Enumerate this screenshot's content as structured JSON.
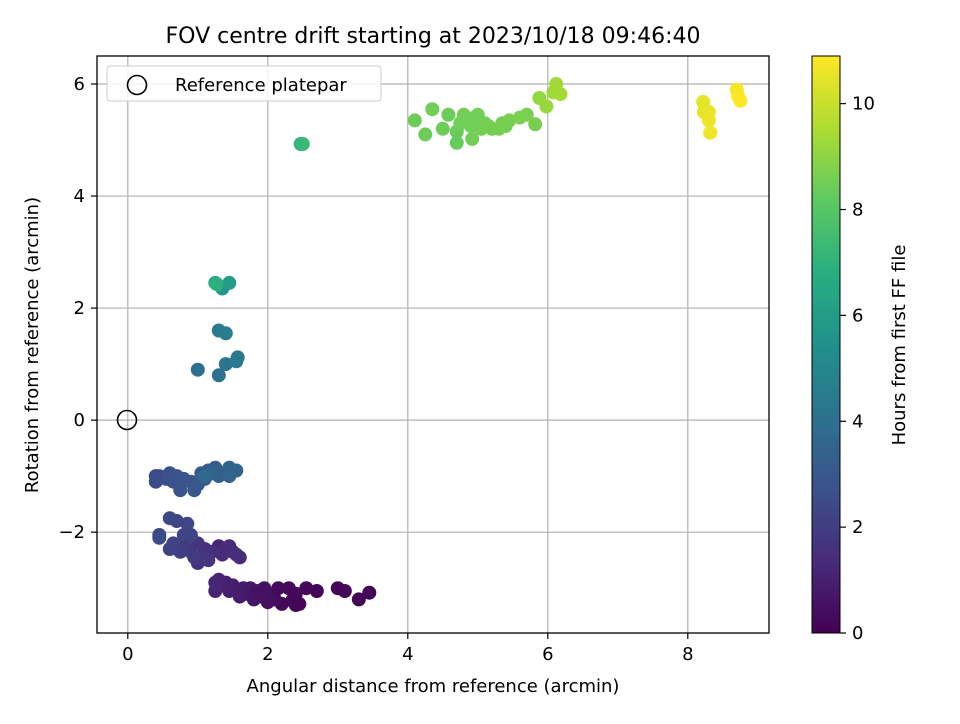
{
  "chart_data": {
    "type": "scatter",
    "title": "FOV centre drift starting at 2023/10/18 09:46:40",
    "xlabel": "Angular distance from reference (arcmin)",
    "ylabel": "Rotation from reference (arcmin)",
    "xlim": [
      -0.44,
      9.16
    ],
    "ylim": [
      -3.8,
      6.5
    ],
    "xticks": [
      0,
      2,
      4,
      6,
      8
    ],
    "yticks": [
      -2,
      0,
      2,
      4,
      6
    ],
    "ytick_labels": [
      "−2",
      "0",
      "2",
      "4",
      "6"
    ],
    "grid": true,
    "legend": {
      "position": "upper-left",
      "entries": [
        "Reference platepar"
      ]
    },
    "reference_point": {
      "x": 0,
      "y": 0,
      "label": "Reference platepar"
    },
    "colorbar": {
      "label": "Hours from first FF file",
      "colormap": "viridis",
      "range": [
        0,
        10.9
      ],
      "ticks": [
        0,
        2,
        4,
        6,
        8,
        10
      ]
    },
    "points": [
      [
        2.7,
        -3.05,
        0.1
      ],
      [
        2.35,
        -3.22,
        0.15
      ],
      [
        2.4,
        -3.3,
        0.2
      ],
      [
        2.2,
        -3.28,
        0.25
      ],
      [
        2.3,
        -3.0,
        0.3
      ],
      [
        2.1,
        -3.2,
        0.35
      ],
      [
        2.0,
        -3.25,
        0.4
      ],
      [
        2.05,
        -3.1,
        0.45
      ],
      [
        1.9,
        -3.15,
        0.5
      ],
      [
        1.95,
        -3.0,
        0.55
      ],
      [
        1.8,
        -3.2,
        0.6
      ],
      [
        1.7,
        -3.1,
        0.65
      ],
      [
        1.75,
        -3.0,
        0.7
      ],
      [
        1.6,
        -3.15,
        0.75
      ],
      [
        1.65,
        -3.0,
        0.8
      ],
      [
        1.55,
        -3.05,
        0.85
      ],
      [
        1.5,
        -2.95,
        0.9
      ],
      [
        1.45,
        -3.05,
        0.95
      ],
      [
        1.4,
        -2.9,
        1.0
      ],
      [
        1.35,
        -2.95,
        1.05
      ],
      [
        1.3,
        -2.85,
        1.1
      ],
      [
        1.25,
        -3.05,
        1.15
      ],
      [
        1.25,
        -2.9,
        1.2
      ],
      [
        2.45,
        -3.28,
        0.1
      ],
      [
        2.15,
        -3.0,
        0.3
      ],
      [
        1.85,
        -3.05,
        0.5
      ],
      [
        3.0,
        -3.0,
        0.1
      ],
      [
        3.1,
        -3.05,
        0.15
      ],
      [
        3.3,
        -3.2,
        0.05
      ],
      [
        3.45,
        -3.08,
        0.1
      ],
      [
        2.55,
        -3.0,
        0.2
      ],
      [
        2.4,
        -3.1,
        0.25
      ],
      [
        1.3,
        -2.25,
        1.2
      ],
      [
        1.4,
        -2.3,
        1.3
      ],
      [
        1.5,
        -2.35,
        1.4
      ],
      [
        1.55,
        -2.4,
        1.5
      ],
      [
        1.6,
        -2.45,
        1.45
      ],
      [
        1.45,
        -2.25,
        1.35
      ],
      [
        1.35,
        -2.4,
        1.4
      ],
      [
        1.2,
        -2.35,
        1.5
      ],
      [
        1.1,
        -2.3,
        1.6
      ],
      [
        1.05,
        -2.45,
        1.65
      ],
      [
        1.0,
        -2.55,
        1.7
      ],
      [
        1.0,
        -2.2,
        1.75
      ],
      [
        0.9,
        -2.35,
        1.8
      ],
      [
        0.95,
        -2.45,
        1.85
      ],
      [
        0.85,
        -2.3,
        1.9
      ],
      [
        0.8,
        -2.2,
        1.95
      ],
      [
        0.75,
        -2.35,
        2.0
      ],
      [
        0.7,
        -2.25,
        2.05
      ],
      [
        0.65,
        -2.2,
        2.1
      ],
      [
        0.6,
        -2.3,
        2.15
      ],
      [
        0.9,
        -2.05,
        2.2
      ],
      [
        0.85,
        -1.85,
        2.25
      ],
      [
        0.7,
        -1.8,
        2.3
      ],
      [
        0.6,
        -1.75,
        2.35
      ],
      [
        0.45,
        -2.05,
        2.4
      ],
      [
        0.45,
        -2.1,
        2.45
      ],
      [
        1.15,
        -2.5,
        1.7
      ],
      [
        0.8,
        -2.05,
        2.2
      ],
      [
        0.4,
        -1.1,
        2.5
      ],
      [
        0.45,
        -1.0,
        2.55
      ],
      [
        0.55,
        -1.05,
        2.6
      ],
      [
        0.6,
        -0.95,
        2.65
      ],
      [
        0.65,
        -1.1,
        2.7
      ],
      [
        0.7,
        -1.0,
        2.75
      ],
      [
        0.75,
        -1.25,
        2.8
      ],
      [
        0.8,
        -1.05,
        2.85
      ],
      [
        0.9,
        -1.1,
        2.9
      ],
      [
        0.95,
        -1.25,
        2.95
      ],
      [
        1.0,
        -1.15,
        3.0
      ],
      [
        1.05,
        -0.95,
        3.05
      ],
      [
        1.1,
        -1.05,
        3.1
      ],
      [
        1.15,
        -0.9,
        3.15
      ],
      [
        1.25,
        -0.85,
        3.2
      ],
      [
        1.3,
        -1.0,
        3.25
      ],
      [
        1.35,
        -0.95,
        3.3
      ],
      [
        1.45,
        -0.85,
        3.35
      ],
      [
        1.5,
        -0.9,
        3.4
      ],
      [
        1.55,
        -0.9,
        3.45
      ],
      [
        1.45,
        -1.0,
        3.5
      ],
      [
        1.2,
        -0.95,
        3.55
      ],
      [
        1.1,
        -1.0,
        3.7
      ],
      [
        0.4,
        -1.0,
        2.5
      ],
      [
        1.0,
        0.9,
        3.9
      ],
      [
        1.3,
        0.8,
        4.1
      ],
      [
        1.4,
        1.0,
        4.2
      ],
      [
        1.55,
        1.05,
        4.3
      ],
      [
        1.57,
        1.12,
        4.35
      ],
      [
        1.3,
        1.6,
        4.5
      ],
      [
        1.4,
        1.55,
        4.6
      ],
      [
        1.35,
        2.35,
        5.8
      ],
      [
        1.45,
        2.45,
        6.0
      ],
      [
        1.25,
        2.45,
        6.5
      ],
      [
        1.27,
        2.43,
        6.9
      ],
      [
        2.47,
        4.93,
        7.2
      ],
      [
        2.5,
        4.93,
        7.3
      ],
      [
        4.1,
        5.35,
        8.4
      ],
      [
        4.25,
        5.1,
        8.45
      ],
      [
        4.35,
        5.55,
        8.5
      ],
      [
        4.5,
        5.2,
        8.45
      ],
      [
        4.58,
        5.45,
        8.4
      ],
      [
        4.7,
        5.15,
        8.35
      ],
      [
        4.75,
        5.3,
        8.5
      ],
      [
        4.8,
        5.45,
        8.55
      ],
      [
        4.9,
        5.25,
        8.5
      ],
      [
        4.95,
        5.4,
        8.45
      ],
      [
        5.0,
        5.35,
        8.5
      ],
      [
        5.05,
        5.2,
        8.55
      ],
      [
        5.1,
        5.3,
        8.5
      ],
      [
        5.15,
        5.25,
        8.6
      ],
      [
        5.2,
        5.2,
        8.55
      ],
      [
        5.3,
        5.2,
        8.6
      ],
      [
        5.35,
        5.3,
        8.55
      ],
      [
        5.4,
        5.25,
        8.6
      ],
      [
        5.45,
        5.35,
        8.6
      ],
      [
        4.7,
        4.95,
        8.3
      ],
      [
        4.92,
        5.02,
        8.5
      ],
      [
        5.6,
        5.4,
        8.65
      ],
      [
        5.7,
        5.45,
        8.7
      ],
      [
        5.82,
        5.28,
        8.6
      ],
      [
        5.88,
        5.75,
        9.1
      ],
      [
        5.98,
        5.6,
        9.2
      ],
      [
        6.08,
        5.85,
        9.3
      ],
      [
        6.12,
        6.0,
        9.35
      ],
      [
        6.18,
        5.82,
        9.4
      ],
      [
        5.0,
        5.45,
        8.5
      ],
      [
        4.85,
        5.35,
        8.5
      ],
      [
        8.22,
        5.68,
        10.5
      ],
      [
        8.23,
        5.5,
        10.55
      ],
      [
        8.3,
        5.5,
        10.6
      ],
      [
        8.3,
        5.35,
        10.65
      ],
      [
        8.32,
        5.13,
        10.7
      ],
      [
        8.7,
        5.9,
        10.8
      ],
      [
        8.72,
        5.78,
        10.85
      ],
      [
        8.75,
        5.7,
        10.9
      ]
    ]
  }
}
